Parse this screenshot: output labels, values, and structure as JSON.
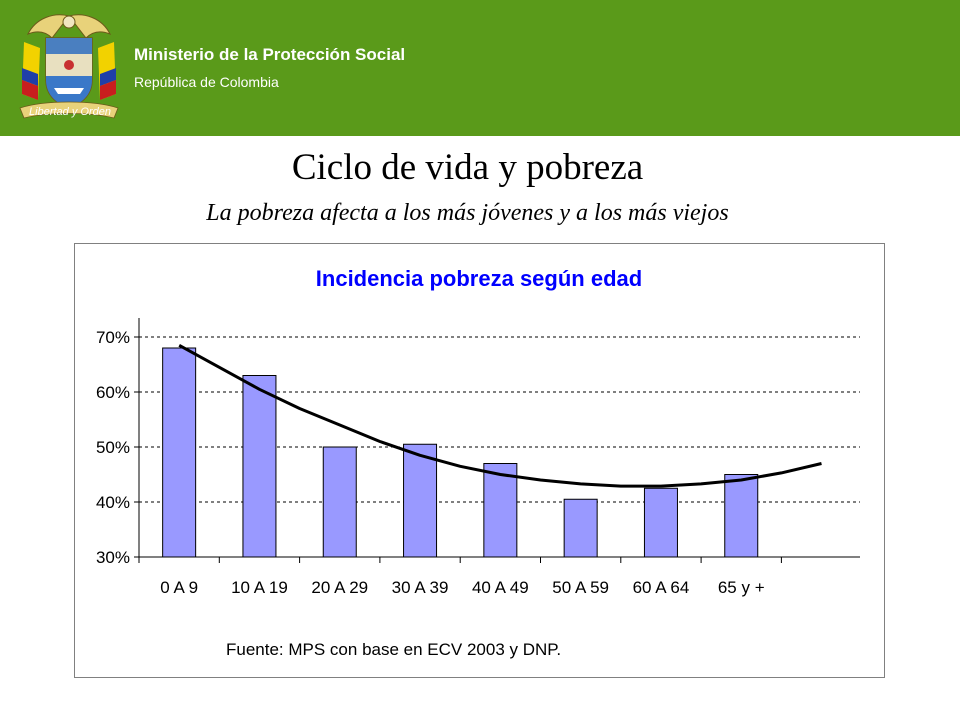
{
  "header": {
    "ministry": "Ministerio de la Protección Social",
    "republic": "República de Colombia",
    "motto": "Libertad y Orden",
    "logo_icon": "coat-of-arms-icon",
    "background_color": "#5a9a1a"
  },
  "slide": {
    "title": "Ciclo de vida y pobreza",
    "subtitle": "La pobreza afecta a los más jóvenes y a los más viejos"
  },
  "chart_data": {
    "type": "bar",
    "title": "Incidencia pobreza según edad",
    "categories": [
      "0 A 9",
      "10 A 19",
      "20 A 29",
      "30 A 39",
      "40 A 49",
      "50 A 59",
      "60 A 64",
      "65 y +"
    ],
    "values": [
      68,
      63,
      50,
      50.5,
      47,
      40.5,
      42.5,
      45
    ],
    "trendline": {
      "type": "polynomial",
      "x": [
        0,
        0.5,
        1,
        1.5,
        2,
        2.5,
        3,
        3.5,
        4,
        4.5,
        5,
        5.5,
        6,
        6.5,
        7,
        7.5,
        8
      ],
      "y": [
        68.5,
        64.5,
        60.5,
        57.0,
        54.0,
        51.0,
        48.5,
        46.5,
        45.0,
        44.0,
        43.3,
        42.9,
        42.9,
        43.3,
        44.0,
        45.3,
        47.0
      ]
    },
    "yticks": [
      "30%",
      "40%",
      "50%",
      "60%",
      "70%"
    ],
    "ytick_values": [
      30,
      40,
      50,
      60,
      70
    ],
    "ylim": [
      30,
      72
    ],
    "xlabel": "",
    "ylabel": "",
    "grid": "horizontal dashed",
    "bar_color": "#9999ff",
    "title_color": "#0000ff",
    "source_note": "Fuente: MPS con base en ECV 2003 y DNP."
  }
}
